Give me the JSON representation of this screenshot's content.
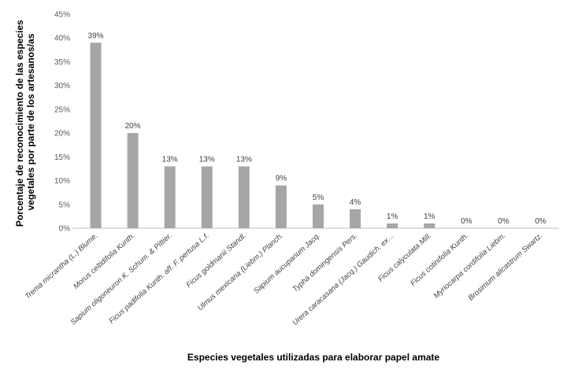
{
  "chart_data": {
    "type": "bar",
    "categories": [
      "Trema micrantha (L.) Blume.",
      "Morus celtidifolia Kunth.",
      "Sapium oligoneuron K. Schum. & Pittier.",
      "Ficus padifolia Kunth. aff. F. pertusa L.f.",
      "Ficus goldmanii Standl.",
      "Ulmus mexicana (Liebm.) Planch.",
      "Sapium aucuparium Jacq.",
      "Typha domingensis Pers.",
      "Urera caracasana (Jacq.) Gaudich. ex…",
      "Ficus calyculata Mill.",
      "Ficus cotinifolia Kunth.",
      "Myriocarpa cordifolia Liebm.",
      "Brosimum alicastrum Swartz."
    ],
    "values": [
      39,
      20,
      13,
      13,
      13,
      9,
      5,
      4,
      1,
      1,
      0,
      0,
      0
    ],
    "data_labels": [
      "39%",
      "20%",
      "13%",
      "13%",
      "13%",
      "9%",
      "5%",
      "4%",
      "1%",
      "1%",
      "0%",
      "0%",
      "0%"
    ],
    "yticks": [
      "0%",
      "5%",
      "10%",
      "15%",
      "20%",
      "25%",
      "30%",
      "35%",
      "40%",
      "45%"
    ],
    "ylim": [
      0,
      45
    ],
    "xlabel": "Especies vegetales utilizadas para elaborar papel amate",
    "ylabel_lines": [
      "Porcentaje de reconocimiento de las especies",
      "vegetales por parte de los artesanos/as"
    ],
    "grid": false,
    "legend": "none",
    "colors": {
      "bar": "#a6a6a6",
      "axis": "#bfbfbf"
    }
  }
}
